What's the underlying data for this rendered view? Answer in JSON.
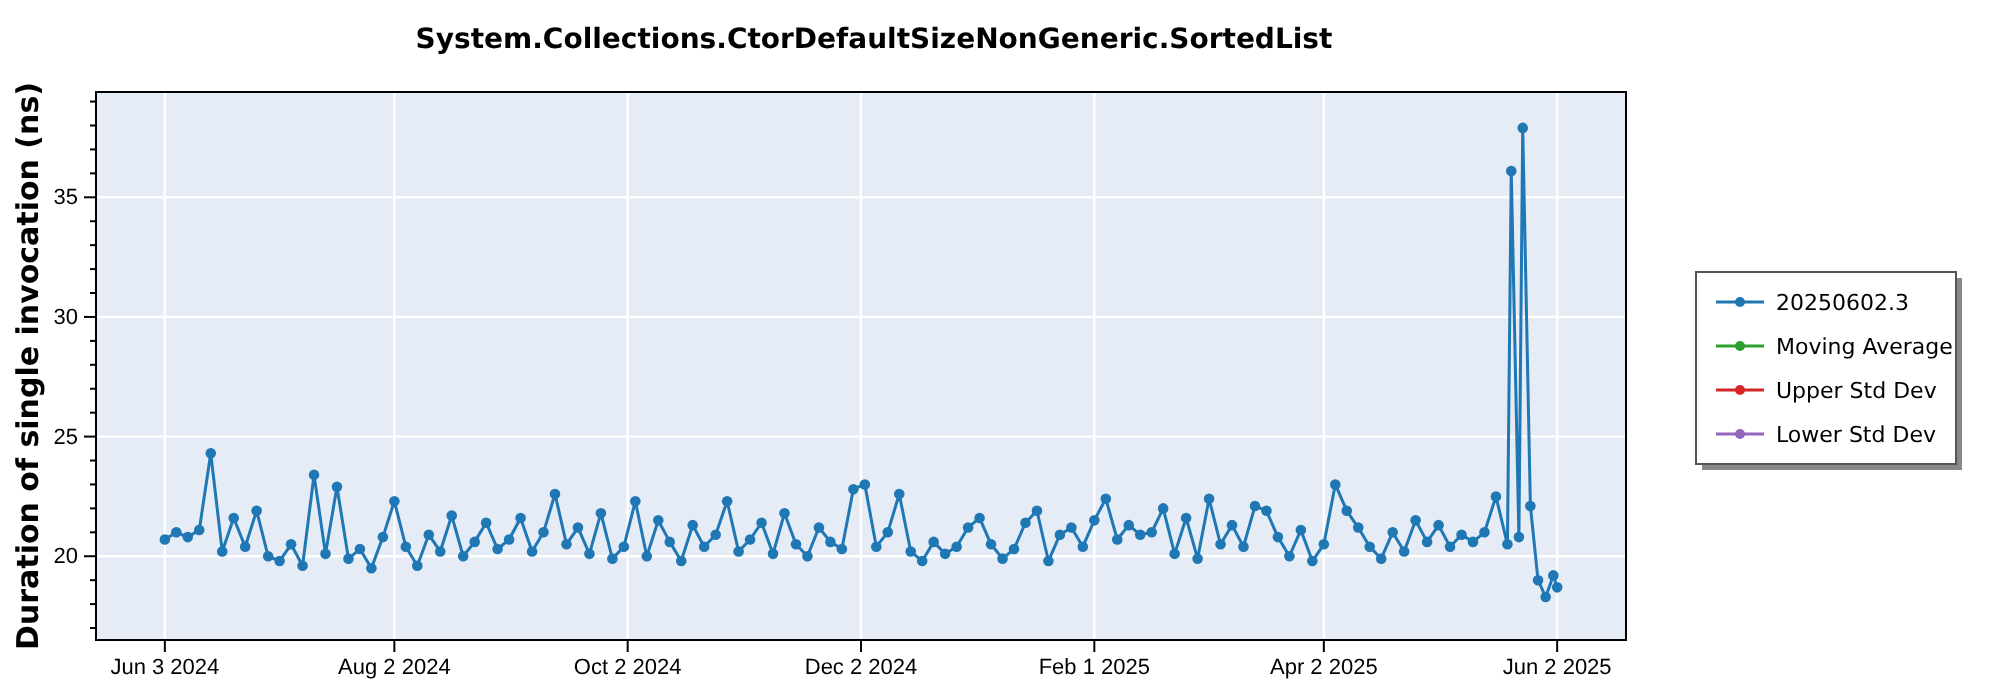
{
  "chart_data": {
    "type": "line",
    "title": "System.Collections.CtorDefaultSizeNonGeneric.SortedList",
    "ylabel": "Duration of single invocation (ns)",
    "xlim": [
      "2024-05-16",
      "2025-06-20"
    ],
    "xticks": [
      {
        "value": "2024-06-03",
        "label": "Jun 3 2024"
      },
      {
        "value": "2024-08-02",
        "label": "Aug 2 2024"
      },
      {
        "value": "2024-10-02",
        "label": "Oct 2 2024"
      },
      {
        "value": "2024-12-02",
        "label": "Dec 2 2024"
      },
      {
        "value": "2025-02-01",
        "label": "Feb 1 2025"
      },
      {
        "value": "2025-04-02",
        "label": "Apr 2 2025"
      },
      {
        "value": "2025-06-02",
        "label": "Jun 2 2025"
      }
    ],
    "ylim": [
      16.5,
      39.4
    ],
    "yticks": [
      {
        "value": 17,
        "label": null
      },
      {
        "value": 18,
        "label": null
      },
      {
        "value": 19,
        "label": null
      },
      20,
      {
        "value": 21,
        "label": null
      },
      {
        "value": 22,
        "label": null
      },
      {
        "value": 23,
        "label": null
      },
      {
        "value": 24,
        "label": null
      },
      25,
      {
        "value": 26,
        "label": null
      },
      {
        "value": 27,
        "label": null
      },
      {
        "value": 28,
        "label": null
      },
      {
        "value": 29,
        "label": null
      },
      30,
      {
        "value": 31,
        "label": null
      },
      {
        "value": 32,
        "label": null
      },
      {
        "value": 33,
        "label": null
      },
      {
        "value": 34,
        "label": null
      },
      35,
      {
        "value": 36,
        "label": null
      },
      {
        "value": 37,
        "label": null
      },
      {
        "value": 38,
        "label": null
      },
      {
        "value": 39,
        "label": null
      }
    ],
    "grid": true,
    "legend": "right",
    "marker": "circle",
    "line_style": "solid",
    "series": [
      {
        "name": "20250602.3",
        "color": "#1f77b4",
        "x": [
          "2024-06-03",
          "2024-06-06",
          "2024-06-09",
          "2024-06-12",
          "2024-06-15",
          "2024-06-18",
          "2024-06-21",
          "2024-06-24",
          "2024-06-27",
          "2024-06-30",
          "2024-07-03",
          "2024-07-06",
          "2024-07-09",
          "2024-07-12",
          "2024-07-15",
          "2024-07-18",
          "2024-07-21",
          "2024-07-24",
          "2024-07-27",
          "2024-07-30",
          "2024-08-02",
          "2024-08-05",
          "2024-08-08",
          "2024-08-11",
          "2024-08-14",
          "2024-08-17",
          "2024-08-20",
          "2024-08-23",
          "2024-08-26",
          "2024-08-29",
          "2024-09-01",
          "2024-09-04",
          "2024-09-07",
          "2024-09-10",
          "2024-09-13",
          "2024-09-16",
          "2024-09-19",
          "2024-09-22",
          "2024-09-25",
          "2024-09-28",
          "2024-10-01",
          "2024-10-04",
          "2024-10-07",
          "2024-10-10",
          "2024-10-13",
          "2024-10-16",
          "2024-10-19",
          "2024-10-22",
          "2024-10-25",
          "2024-10-28",
          "2024-10-31",
          "2024-11-03",
          "2024-11-06",
          "2024-11-09",
          "2024-11-12",
          "2024-11-15",
          "2024-11-18",
          "2024-11-21",
          "2024-11-24",
          "2024-11-27",
          "2024-11-30",
          "2024-12-03",
          "2024-12-06",
          "2024-12-09",
          "2024-12-12",
          "2024-12-15",
          "2024-12-18",
          "2024-12-21",
          "2024-12-24",
          "2024-12-27",
          "2024-12-30",
          "2025-01-02",
          "2025-01-05",
          "2025-01-08",
          "2025-01-11",
          "2025-01-14",
          "2025-01-17",
          "2025-01-20",
          "2025-01-23",
          "2025-01-26",
          "2025-01-29",
          "2025-02-01",
          "2025-02-04",
          "2025-02-07",
          "2025-02-10",
          "2025-02-13",
          "2025-02-16",
          "2025-02-19",
          "2025-02-22",
          "2025-02-25",
          "2025-02-28",
          "2025-03-03",
          "2025-03-06",
          "2025-03-09",
          "2025-03-12",
          "2025-03-15",
          "2025-03-18",
          "2025-03-21",
          "2025-03-24",
          "2025-03-27",
          "2025-03-30",
          "2025-04-02",
          "2025-04-05",
          "2025-04-08",
          "2025-04-11",
          "2025-04-14",
          "2025-04-17",
          "2025-04-20",
          "2025-04-23",
          "2025-04-26",
          "2025-04-29",
          "2025-05-02",
          "2025-05-05",
          "2025-05-08",
          "2025-05-11",
          "2025-05-14",
          "2025-05-17",
          "2025-05-20",
          "2025-05-21",
          "2025-05-23",
          "2025-05-24",
          "2025-05-26",
          "2025-05-28",
          "2025-05-30",
          "2025-06-01",
          "2025-06-02"
        ],
        "values": [
          20.7,
          21.0,
          20.8,
          21.1,
          24.3,
          20.2,
          21.6,
          20.4,
          21.9,
          20.0,
          19.8,
          20.5,
          19.6,
          23.4,
          20.1,
          22.9,
          19.9,
          20.3,
          19.5,
          20.8,
          22.3,
          20.4,
          19.6,
          20.9,
          20.2,
          21.7,
          20.0,
          20.6,
          21.4,
          20.3,
          20.7,
          21.6,
          20.2,
          21.0,
          22.6,
          20.5,
          21.2,
          20.1,
          21.8,
          19.9,
          20.4,
          22.3,
          20.0,
          21.5,
          20.6,
          19.8,
          21.3,
          20.4,
          20.9,
          22.3,
          20.2,
          20.7,
          21.4,
          20.1,
          21.8,
          20.5,
          20.0,
          21.2,
          20.6,
          20.3,
          22.8,
          23.0,
          20.4,
          21.0,
          22.6,
          20.2,
          19.8,
          20.6,
          20.1,
          20.4,
          21.2,
          21.6,
          20.5,
          19.9,
          20.3,
          21.4,
          21.9,
          19.8,
          20.9,
          21.2,
          20.4,
          21.5,
          22.4,
          20.7,
          21.3,
          20.9,
          21.0,
          22.0,
          20.1,
          21.6,
          19.9,
          22.4,
          20.5,
          21.3,
          20.4,
          22.1,
          21.9,
          20.8,
          20.0,
          21.1,
          19.8,
          20.5,
          23.0,
          21.9,
          21.2,
          20.4,
          19.9,
          21.0,
          20.2,
          21.5,
          20.6,
          21.3,
          20.4,
          20.9,
          20.6,
          21.0,
          22.5,
          20.5,
          36.1,
          20.8,
          37.9,
          22.1,
          19.0,
          18.3,
          19.2,
          18.7
        ]
      },
      {
        "name": "Moving Average",
        "color": "#2ca02c"
      },
      {
        "name": "Upper Std Dev",
        "color": "#d62728"
      },
      {
        "name": "Lower Std Dev",
        "color": "#9467bd"
      }
    ]
  }
}
